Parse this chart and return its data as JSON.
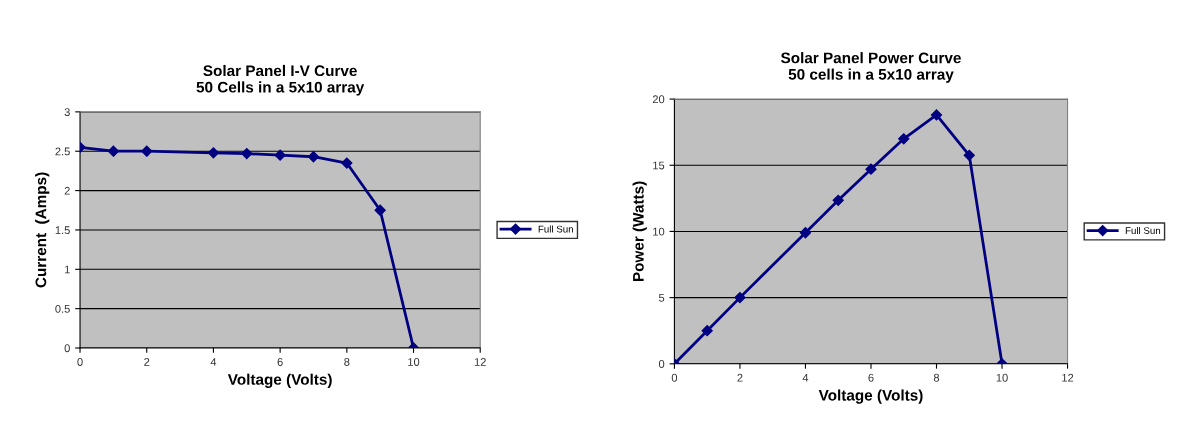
{
  "chart_data": [
    {
      "type": "line",
      "title": "Solar Panel I-V Curve\n50 Cells in a 5x10 array",
      "xlabel": "Voltage (Volts)",
      "ylabel": "Current  (Amps)",
      "x": [
        0,
        1,
        2,
        4,
        5,
        6,
        7,
        8,
        9,
        10
      ],
      "series": [
        {
          "name": "Full Sun",
          "color": "#000080",
          "values": [
            2.55,
            2.5,
            2.5,
            2.48,
            2.47,
            2.45,
            2.43,
            2.35,
            1.75,
            0
          ]
        }
      ],
      "xlim": [
        0,
        12
      ],
      "xticks": [
        0,
        2,
        4,
        6,
        8,
        10,
        12
      ],
      "ylim": [
        0,
        3
      ],
      "yticks": [
        0,
        0.5,
        1,
        1.5,
        2,
        2.5,
        3
      ],
      "grid": "y",
      "legend": "right",
      "marker": "diamond",
      "line_style": "solid"
    },
    {
      "type": "line",
      "title": "Solar Panel Power Curve\n50 cells in a 5x10 array",
      "xlabel": "Voltage (Volts)",
      "ylabel": "Power (Watts)",
      "x": [
        0,
        1,
        2,
        4,
        5,
        6,
        7,
        8,
        9,
        10
      ],
      "series": [
        {
          "name": "Full Sun",
          "color": "#000080",
          "values": [
            0,
            2.5,
            5,
            9.9,
            12.35,
            14.7,
            17.0,
            18.8,
            15.75,
            0
          ]
        }
      ],
      "xlim": [
        0,
        12
      ],
      "xticks": [
        0,
        2,
        4,
        6,
        8,
        10,
        12
      ],
      "ylim": [
        0,
        20
      ],
      "yticks": [
        0,
        5,
        10,
        15,
        20
      ],
      "grid": "y",
      "legend": "right",
      "marker": "diamond",
      "line_style": "solid"
    }
  ]
}
